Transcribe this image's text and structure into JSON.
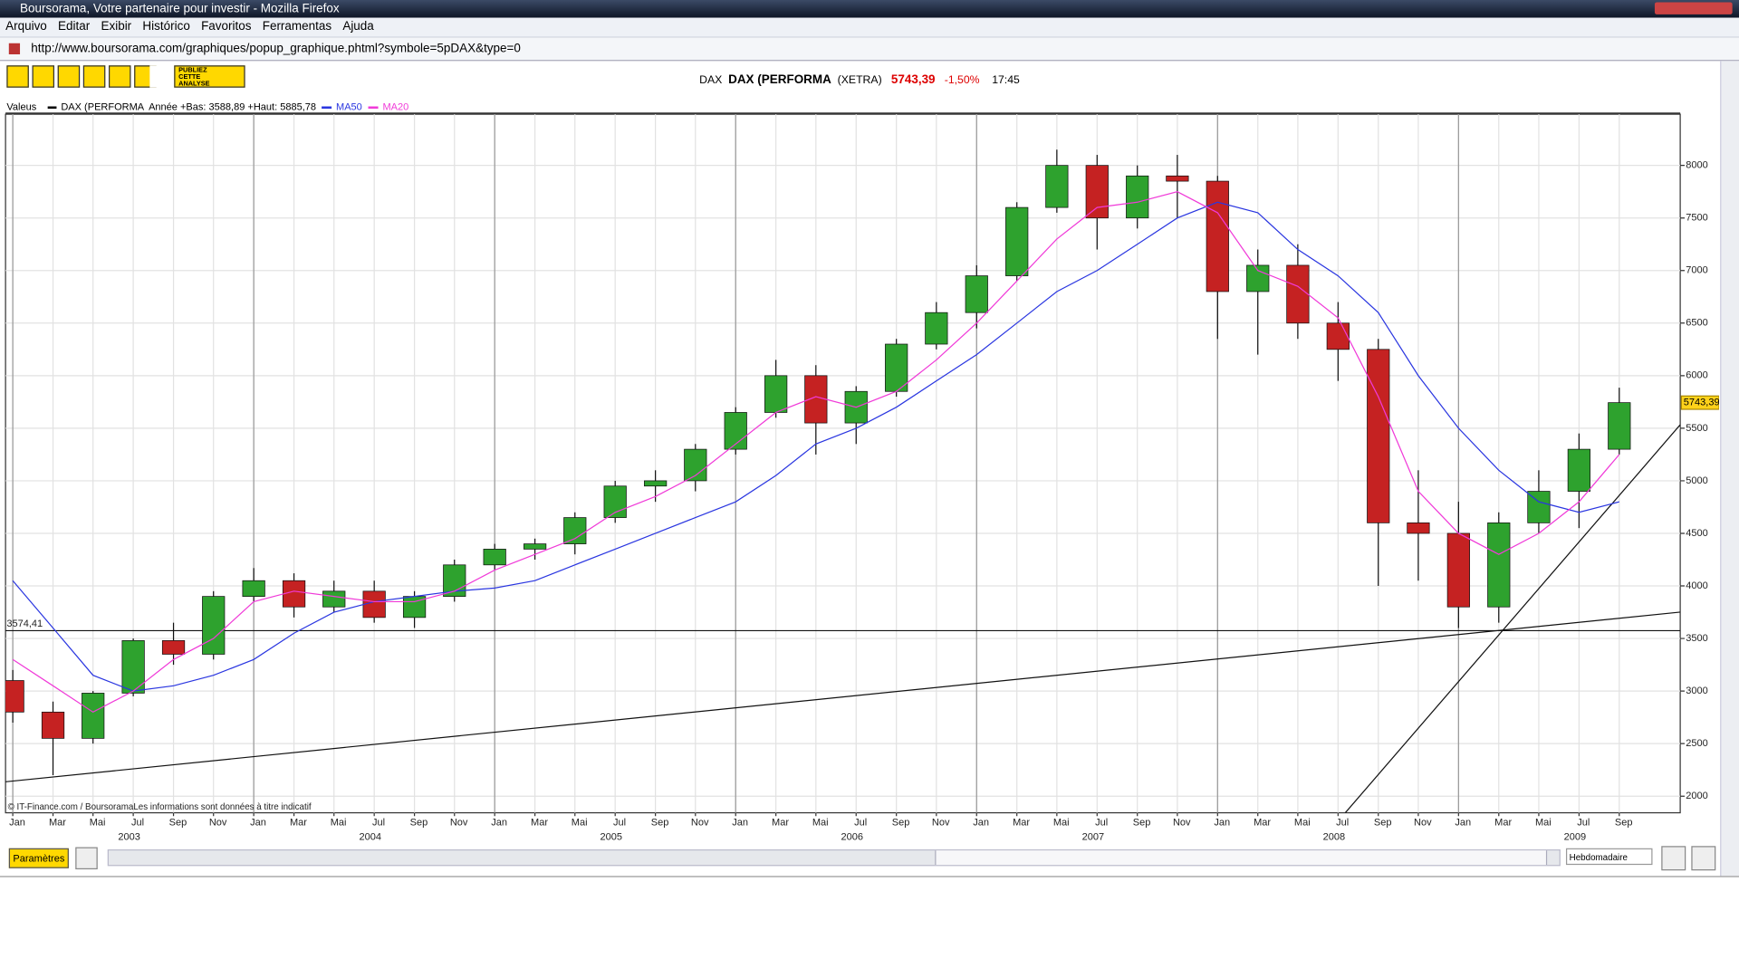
{
  "window": {
    "title": "Boursorama, Votre partenaire pour investir - Mozilla Firefox",
    "menu": [
      "Arquivo",
      "Editar",
      "Exibir",
      "Histórico",
      "Favoritos",
      "Ferramentas",
      "Ajuda"
    ],
    "url": "http://www.boursorama.com/graphiques/popup_graphique.phtml?symbole=5pDAX&type=0"
  },
  "toolbar": {
    "publish": [
      "PUBLIEZ",
      "CETTE",
      "ANALYSE"
    ]
  },
  "header": {
    "code": "DAX",
    "name": "DAX (PERFORMA",
    "market": "(XETRA)",
    "price": "5743,39",
    "change": "-1,50%",
    "time": "17:45"
  },
  "chart_data": {
    "type": "candlestick",
    "legend_title": "Valeus",
    "range_note": "Année +Bas: 3588,89 +Haut: 5885,78",
    "x": [
      2003,
      2003.167,
      2003.333,
      2003.5,
      2003.667,
      2003.833,
      2004,
      2004.167,
      2004.333,
      2004.5,
      2004.667,
      2004.833,
      2005,
      2005.167,
      2005.333,
      2005.5,
      2005.667,
      2005.833,
      2006,
      2006.167,
      2006.333,
      2006.5,
      2006.667,
      2006.833,
      2007,
      2007.167,
      2007.333,
      2007.5,
      2007.667,
      2007.833,
      2008,
      2008.167,
      2008.333,
      2008.5,
      2008.667,
      2008.833,
      2009,
      2009.167,
      2009.333,
      2009.5,
      2009.667
    ],
    "series": [
      {
        "name": "DAX (PERFORMA",
        "up_color": "#2ea22e",
        "down_color": "#c52222",
        "open": [
          3100,
          2800,
          2550,
          2980,
          3480,
          3350,
          3900,
          4050,
          3800,
          3950,
          3700,
          3900,
          4200,
          4350,
          4400,
          4650,
          4950,
          5000,
          5300,
          5650,
          6000,
          5550,
          5850,
          6300,
          6600,
          6950,
          7600,
          8000,
          7500,
          7900,
          7850,
          6800,
          7050,
          6500,
          6250,
          4600,
          4500,
          3800,
          4600,
          4900,
          5300
        ],
        "high": [
          3200,
          2900,
          3000,
          3500,
          3650,
          3950,
          4170,
          4120,
          4050,
          4050,
          3950,
          4250,
          4400,
          4450,
          4700,
          5000,
          5100,
          5350,
          5700,
          6150,
          6100,
          5900,
          6350,
          6700,
          7050,
          7650,
          8150,
          8100,
          8000,
          8100,
          7900,
          7200,
          7250,
          6700,
          6350,
          5100,
          4800,
          4700,
          5100,
          5450,
          5886
        ],
        "low": [
          2700,
          2200,
          2500,
          2950,
          3250,
          3300,
          3850,
          3700,
          3750,
          3650,
          3600,
          3850,
          4150,
          4250,
          4300,
          4600,
          4800,
          4900,
          5250,
          5600,
          5250,
          5350,
          5800,
          6250,
          6450,
          6900,
          7550,
          7200,
          7400,
          7500,
          6350,
          6200,
          6350,
          5950,
          4000,
          4050,
          3600,
          3650,
          4500,
          4550,
          5250
        ],
        "close": [
          2800,
          2550,
          2980,
          3480,
          3350,
          3900,
          4050,
          3800,
          3950,
          3700,
          3900,
          4200,
          4350,
          4400,
          4650,
          4950,
          5000,
          5300,
          5650,
          6000,
          5550,
          5850,
          6300,
          6600,
          6950,
          7600,
          8000,
          7500,
          7900,
          7850,
          6800,
          7050,
          6500,
          6250,
          4600,
          4500,
          3800,
          4600,
          4900,
          5300,
          5743.39
        ]
      },
      {
        "name": "MA50",
        "color": "#2a36e0",
        "values": [
          4050,
          3600,
          3150,
          3000,
          3050,
          3150,
          3300,
          3550,
          3750,
          3850,
          3900,
          3950,
          3980,
          4050,
          4200,
          4350,
          4500,
          4650,
          4800,
          5050,
          5350,
          5500,
          5700,
          5950,
          6200,
          6500,
          6800,
          7000,
          7250,
          7500,
          7650,
          7550,
          7200,
          6950,
          6600,
          6000,
          5500,
          5100,
          4800,
          4700,
          4800
        ]
      },
      {
        "name": "MA20",
        "color": "#f03ad8",
        "values": [
          3300,
          3050,
          2800,
          3000,
          3300,
          3500,
          3850,
          3950,
          3900,
          3850,
          3850,
          3950,
          4150,
          4300,
          4450,
          4700,
          4850,
          5050,
          5350,
          5650,
          5800,
          5700,
          5850,
          6150,
          6500,
          6900,
          7300,
          7600,
          7650,
          7750,
          7550,
          7000,
          6850,
          6550,
          5800,
          4900,
          4500,
          4300,
          4500,
          4800,
          5250
        ]
      }
    ],
    "xlim": [
      2002.97,
      2009.92
    ],
    "ylim": [
      1842,
      8487
    ],
    "yticks": [
      2000,
      2500,
      3000,
      3500,
      4000,
      4500,
      5000,
      5500,
      6000,
      6500,
      7000,
      7500,
      8000
    ],
    "xticks": [
      {
        "value": 2003,
        "label": "Jan"
      },
      {
        "value": 2003.167,
        "label": "Mar"
      },
      {
        "value": 2003.333,
        "label": "Mai"
      },
      {
        "value": 2003.5,
        "label": "Jul"
      },
      {
        "value": 2003.667,
        "label": "Sep"
      },
      {
        "value": 2003.833,
        "label": "Nov"
      },
      {
        "value": 2004,
        "label": "Jan"
      },
      {
        "value": 2004.167,
        "label": "Mar"
      },
      {
        "value": 2004.333,
        "label": "Mai"
      },
      {
        "value": 2004.5,
        "label": "Jul"
      },
      {
        "value": 2004.667,
        "label": "Sep"
      },
      {
        "value": 2004.833,
        "label": "Nov"
      },
      {
        "value": 2005,
        "label": "Jan"
      },
      {
        "value": 2005.167,
        "label": "Mar"
      },
      {
        "value": 2005.333,
        "label": "Mai"
      },
      {
        "value": 2005.5,
        "label": "Jul"
      },
      {
        "value": 2005.667,
        "label": "Sep"
      },
      {
        "value": 2005.833,
        "label": "Nov"
      },
      {
        "value": 2006,
        "label": "Jan"
      },
      {
        "value": 2006.167,
        "label": "Mar"
      },
      {
        "value": 2006.333,
        "label": "Mai"
      },
      {
        "value": 2006.5,
        "label": "Jul"
      },
      {
        "value": 2006.667,
        "label": "Sep"
      },
      {
        "value": 2006.833,
        "label": "Nov"
      },
      {
        "value": 2007,
        "label": "Jan"
      },
      {
        "value": 2007.167,
        "label": "Mar"
      },
      {
        "value": 2007.333,
        "label": "Mai"
      },
      {
        "value": 2007.5,
        "label": "Jul"
      },
      {
        "value": 2007.667,
        "label": "Sep"
      },
      {
        "value": 2007.833,
        "label": "Nov"
      },
      {
        "value": 2008,
        "label": "Jan"
      },
      {
        "value": 2008.167,
        "label": "Mar"
      },
      {
        "value": 2008.333,
        "label": "Mai"
      },
      {
        "value": 2008.5,
        "label": "Jul"
      },
      {
        "value": 2008.667,
        "label": "Sep"
      },
      {
        "value": 2008.833,
        "label": "Nov"
      },
      {
        "value": 2009,
        "label": "Jan"
      },
      {
        "value": 2009.167,
        "label": "Mar"
      },
      {
        "value": 2009.333,
        "label": "Mai"
      },
      {
        "value": 2009.5,
        "label": "Jul"
      },
      {
        "value": 2009.667,
        "label": "Sep"
      }
    ],
    "year_ticks": [
      {
        "value": 2003,
        "label": "2003"
      },
      {
        "value": 2004,
        "label": "2004"
      },
      {
        "value": 2005,
        "label": "2005"
      },
      {
        "value": 2006,
        "label": "2006"
      },
      {
        "value": 2007,
        "label": "2007"
      },
      {
        "value": 2008,
        "label": "2008"
      },
      {
        "value": 2009,
        "label": "2009"
      }
    ],
    "hline": {
      "value": 3574.41,
      "label": "3574,41"
    },
    "price_marker": {
      "value": 5743.39,
      "label": "5743,39"
    },
    "trendlines": [
      {
        "x": [
          2002.97,
          2009.92
        ],
        "values": [
          2137,
          3751
        ]
      },
      {
        "x": [
          2008.53,
          2009.92
        ],
        "values": [
          1842,
          5533
        ]
      }
    ],
    "credit": "© IT-Finance.com / BoursoramaLes informations sont données à titre indicatif"
  },
  "footer": {
    "params": "Paramètres",
    "period": "Hebdomadaire"
  }
}
